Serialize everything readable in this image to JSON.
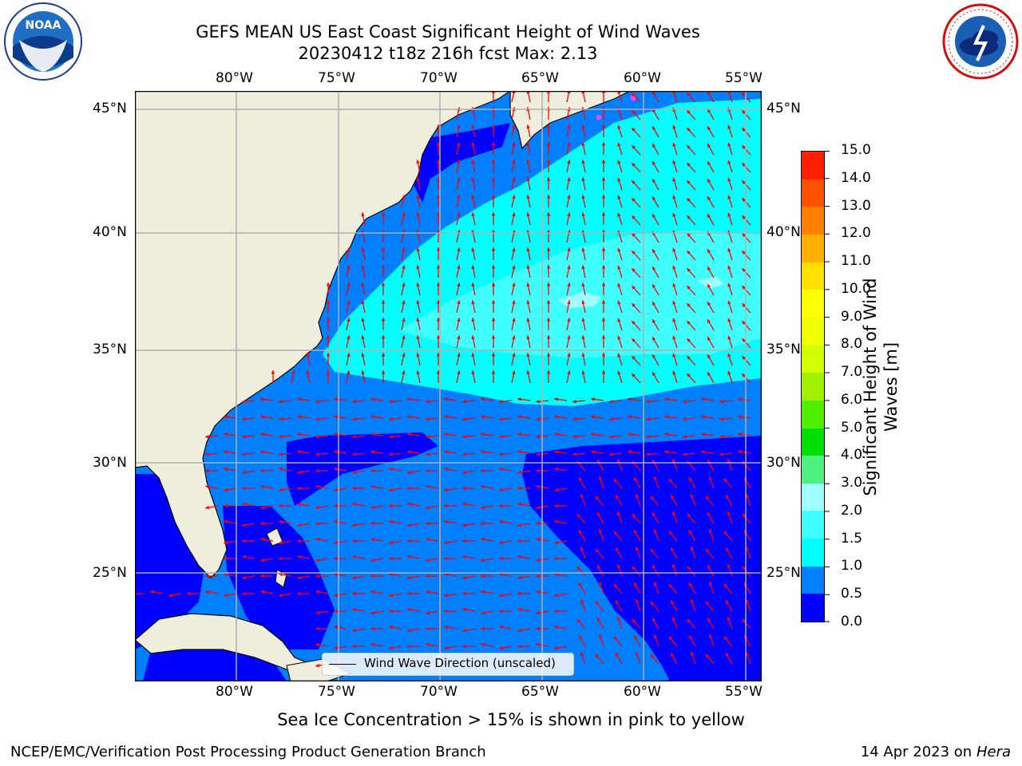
{
  "title": {
    "line1": "GEFS MEAN US East Coast Significant Height of Wind Waves",
    "line2": "20230412 t18z 216h fcst    Max: 2.13"
  },
  "logos": {
    "left": {
      "name": "noaa-logo",
      "text": "NOAA"
    },
    "right": {
      "name": "nws-logo",
      "text": "NATIONAL WEATHER SERVICE"
    }
  },
  "map": {
    "lon_range": [
      -85,
      -54.5
    ],
    "lat_range": [
      20.5,
      46
    ],
    "lon_ticks": [
      "80°W",
      "75°W",
      "70°W",
      "65°W",
      "60°W",
      "55°W"
    ],
    "lat_ticks": [
      "45°N",
      "40°N",
      "35°N",
      "30°N",
      "25°N"
    ],
    "gridlines": true,
    "colors": {
      "land": "#efeedc",
      "coast": "#000000",
      "grid": "#b0b0b0",
      "arrow": "#ff0000"
    }
  },
  "legend": {
    "label": "Wind Wave Direction (unscaled)"
  },
  "colorbar": {
    "label_line1": "Significant Height of Wind",
    "label_line2": "Waves [m]",
    "ticks": [
      "15.0",
      "14.0",
      "13.0",
      "12.0",
      "11.0",
      "10.0",
      "9.0",
      "8.0",
      "7.0",
      "6.0",
      "5.0",
      "4.0",
      "3.0",
      "2.0",
      "1.5",
      "1.0",
      "0.5",
      "0.0"
    ],
    "colors": [
      "#0000ff",
      "#0080ff",
      "#00ffff",
      "#40ffff",
      "#a0ffff",
      "#50f080",
      "#00e000",
      "#50f000",
      "#a0f000",
      "#d0ff00",
      "#f0ff00",
      "#ffff00",
      "#ffe000",
      "#ffb000",
      "#ff8000",
      "#ff5000",
      "#ff2000"
    ]
  },
  "ice_note": "Sea Ice Concentration > 15% is shown in pink to yellow",
  "footer": {
    "left": "NCEP/EMC/Verification Post Processing Product Generation Branch",
    "right_date": "14 Apr 2023 on ",
    "right_host": "Hera"
  }
}
